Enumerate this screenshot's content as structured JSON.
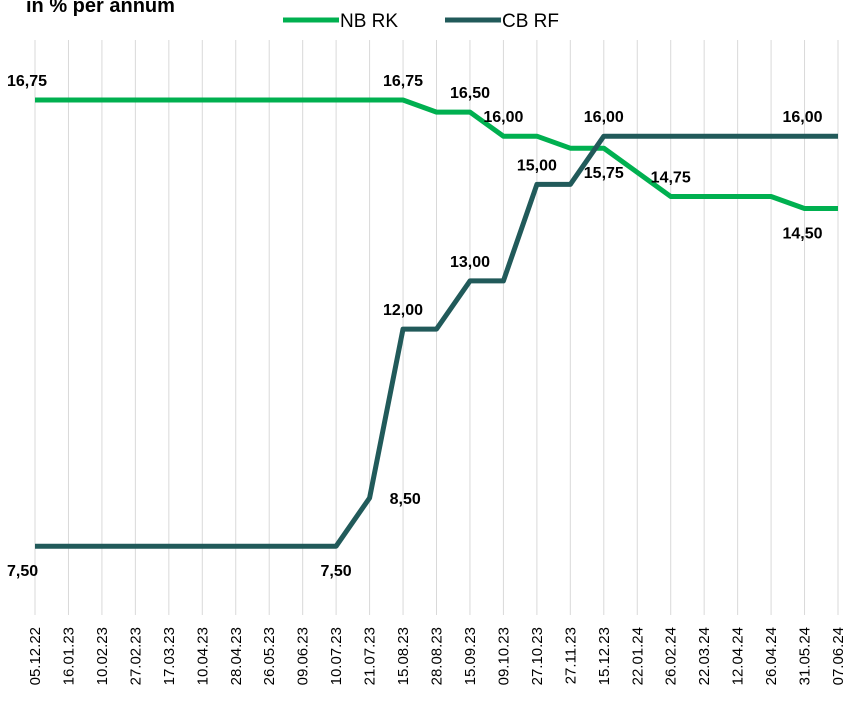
{
  "chart_data": {
    "type": "line",
    "title": "in % per annum",
    "categories": [
      "05.12.22",
      "16.01.23",
      "10.02.23",
      "27.02.23",
      "17.03.23",
      "10.04.23",
      "28.04.23",
      "26.05.23",
      "09.06.23",
      "10.07.23",
      "21.07.23",
      "15.08.23",
      "28.08.23",
      "15.09.23",
      "09.10.23",
      "27.10.23",
      "27.11.23",
      "15.12.23",
      "22.01.24",
      "26.02.24",
      "22.03.24",
      "12.04.24",
      "26.04.24",
      "31.05.24",
      "07.06.24"
    ],
    "series": [
      {
        "name": "NB RK",
        "color": "#00b050",
        "values": [
          16.75,
          16.75,
          16.75,
          16.75,
          16.75,
          16.75,
          16.75,
          16.75,
          16.75,
          16.75,
          16.75,
          16.75,
          16.5,
          16.5,
          16.0,
          16.0,
          15.75,
          15.75,
          15.25,
          14.75,
          14.75,
          14.75,
          14.75,
          14.5,
          14.5
        ]
      },
      {
        "name": "CB RF",
        "color": "#215a5a",
        "values": [
          7.5,
          7.5,
          7.5,
          7.5,
          7.5,
          7.5,
          7.5,
          7.5,
          7.5,
          7.5,
          8.5,
          12.0,
          12.0,
          13.0,
          13.0,
          15.0,
          15.0,
          16.0,
          16.0,
          16.0,
          16.0,
          16.0,
          16.0,
          16.0,
          16.0
        ]
      }
    ],
    "data_labels": [
      {
        "series": 0,
        "index": 0,
        "text": "16,75",
        "pos": "above"
      },
      {
        "series": 0,
        "index": 11,
        "text": "16,75",
        "pos": "above"
      },
      {
        "series": 0,
        "index": 13,
        "text": "16,50",
        "pos": "above"
      },
      {
        "series": 0,
        "index": 14,
        "text": "16,00",
        "pos": "above"
      },
      {
        "series": 0,
        "index": 17,
        "text": "15,75",
        "pos": "below"
      },
      {
        "series": 0,
        "index": 19,
        "text": "14,75",
        "pos": "above"
      },
      {
        "series": 0,
        "index": 23,
        "text": "14,50",
        "pos": "below"
      },
      {
        "series": 1,
        "index": 0,
        "text": "7,50",
        "pos": "below"
      },
      {
        "series": 1,
        "index": 9,
        "text": "7,50",
        "pos": "below"
      },
      {
        "series": 1,
        "index": 10,
        "text": "8,50",
        "pos": "right"
      },
      {
        "series": 1,
        "index": 11,
        "text": "12,00",
        "pos": "above"
      },
      {
        "series": 1,
        "index": 13,
        "text": "13,00",
        "pos": "above"
      },
      {
        "series": 1,
        "index": 15,
        "text": "15,00",
        "pos": "above"
      },
      {
        "series": 1,
        "index": 17,
        "text": "16,00",
        "pos": "above"
      },
      {
        "series": 1,
        "index": 23,
        "text": "16,00",
        "pos": "above"
      }
    ],
    "ylim": [
      5,
      18.5
    ],
    "grid": "vertical",
    "legend": "top-center"
  }
}
